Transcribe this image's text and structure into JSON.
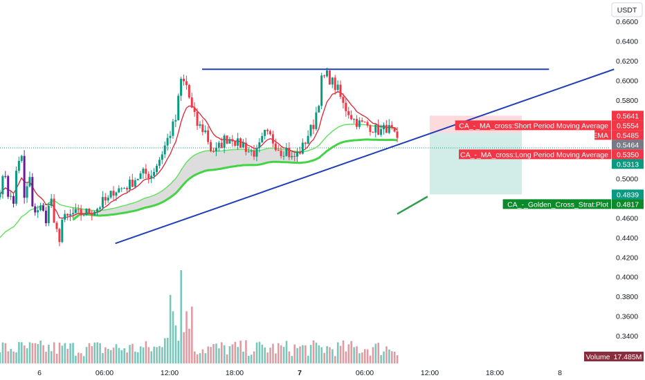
{
  "chart_data": {
    "type": "candlestick",
    "currency": "USDT",
    "price_axis": {
      "min": 0.32,
      "max": 0.68,
      "ticks": [
        "0.6600",
        "0.6400",
        "0.6200",
        "0.6000",
        "0.5800",
        "0.5600",
        "0.5400",
        "0.5200",
        "0.5000",
        "0.4800",
        "0.4600",
        "0.4400",
        "0.4200",
        "0.4000",
        "0.3800",
        "0.3600",
        "0.3400"
      ]
    },
    "time_axis": {
      "ticks": [
        "6",
        "06:00",
        "12:00",
        "18:00",
        "7",
        "06:00",
        "12:00",
        "18:00",
        "8"
      ],
      "bold": [
        "7"
      ],
      "hours_per_tick": 6,
      "first_tick_hour": 0
    },
    "candles": [],
    "short_ma": [],
    "long_ma": [],
    "trendlines": [
      {
        "name": "resistance",
        "from": [
          15.0,
          0.6113
        ],
        "to": [
          47.0,
          0.6113
        ],
        "color": "#1f3fb5"
      },
      {
        "name": "support",
        "from": [
          7.0,
          0.434
        ],
        "to": [
          53.0,
          0.6113
        ],
        "color": "#1f3fb5"
      },
      {
        "name": "plot-segment",
        "from": [
          33.0,
          0.464
        ],
        "to": [
          35.8,
          0.4817
        ],
        "color": "#2e9e4a"
      }
    ],
    "position": {
      "entry": 0.5464,
      "stop": 0.5641,
      "target": 0.4839,
      "from_hour": 36.0,
      "to_hour": 44.5
    },
    "price_tags": [
      {
        "label": "",
        "value": "0.5641",
        "price": 0.5641,
        "color": "#f23645"
      },
      {
        "label": "CA_-_MA_cross:Short Period Moving Average",
        "value": "0.5554",
        "price": 0.5554,
        "color": "#f23645"
      },
      {
        "label": "EMA",
        "value": "0.5485",
        "price": 0.5485,
        "color": "#f23645"
      },
      {
        "label": "",
        "value": "0.5464",
        "price": 0.5464,
        "color": "#787b86"
      },
      {
        "label": "CA_-_MA_cross:Long Period Moving Average",
        "value": "0.5350",
        "price": 0.535,
        "color": "#f23645"
      },
      {
        "label": "",
        "value": "0.5313",
        "price": 0.5313,
        "color": "#089981"
      },
      {
        "label": "",
        "value": "0.4839",
        "price": 0.4839,
        "color": "#089981"
      },
      {
        "label": "CA_-_Golden_Cross_Strat:Plot",
        "value": "0.4817",
        "price": 0.4817,
        "color": "#0b8a2a"
      }
    ],
    "volume": {
      "label": "Volume",
      "value": "17.485M"
    }
  }
}
